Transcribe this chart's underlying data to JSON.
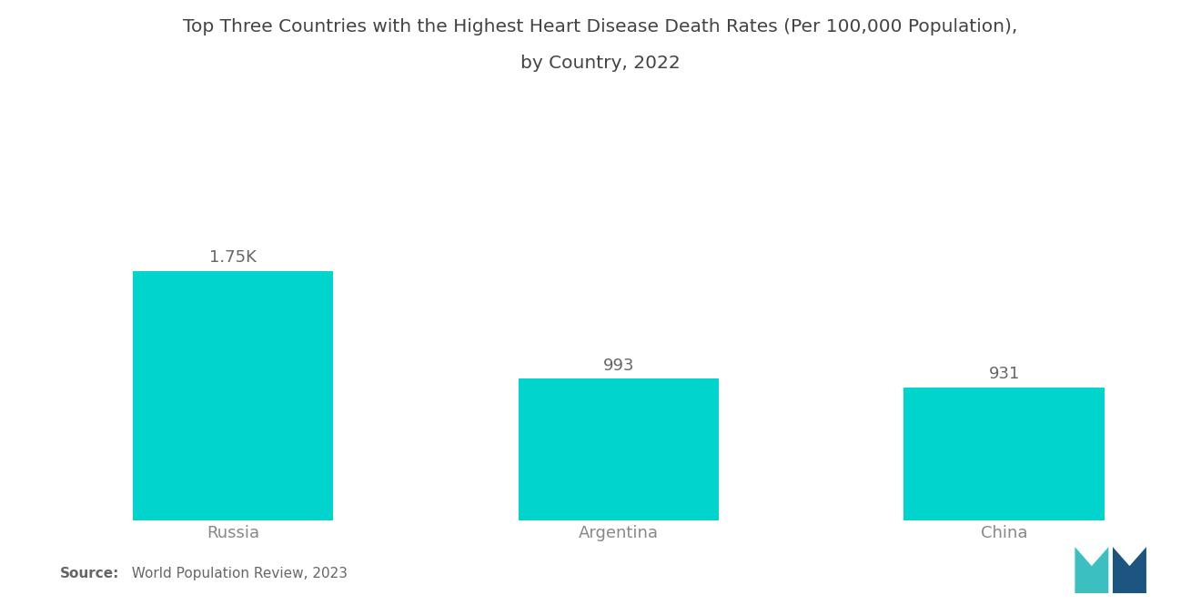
{
  "title_line1": "Top Three Countries with the Highest Heart Disease Death Rates (Per 100,000 Population),",
  "title_line2": "by Country, 2022",
  "categories": [
    "Russia",
    "Argentina",
    "China"
  ],
  "values": [
    1750,
    993,
    931
  ],
  "labels": [
    "1.75K",
    "993",
    "931"
  ],
  "bar_color": "#00D4CC",
  "background_color": "#ffffff",
  "source_bold": "Source:",
  "source_text": "  World Population Review, 2023",
  "title_fontsize": 14.5,
  "label_fontsize": 13,
  "tick_fontsize": 13,
  "source_fontsize": 11,
  "ylim": [
    0,
    2800
  ],
  "bar_width": 0.52,
  "title_color": "#444444",
  "tick_color": "#888888",
  "label_color": "#666666"
}
